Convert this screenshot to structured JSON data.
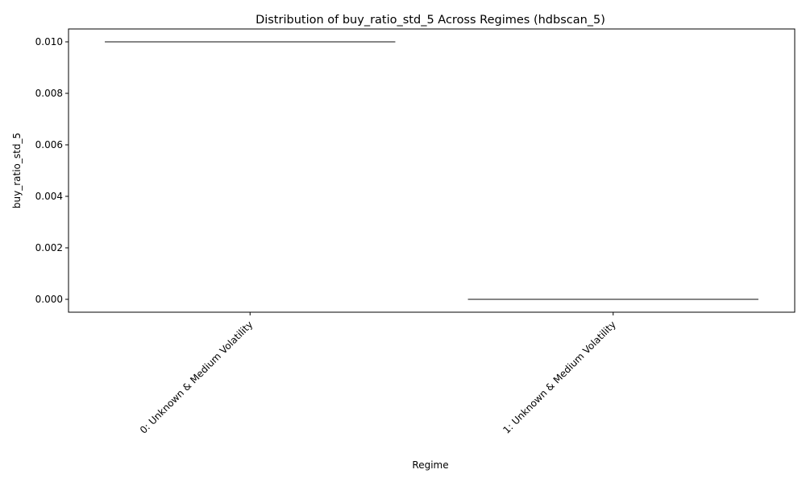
{
  "chart_data": {
    "type": "box",
    "title": "Distribution of buy_ratio_std_5 Across Regimes (hdbscan_5)",
    "xlabel": "Regime",
    "ylabel": "buy_ratio_std_5",
    "categories": [
      "0: Unknown & Medium Volatility",
      "1: Unknown & Medium Volatility"
    ],
    "values": [
      0.01,
      0.0
    ],
    "yticks": [
      "0.000",
      "0.002",
      "0.004",
      "0.006",
      "0.008",
      "0.010"
    ],
    "ytick_values": [
      0,
      0.002,
      0.004,
      0.006,
      0.008,
      0.01
    ],
    "ylim": [
      -0.0005,
      0.0105
    ],
    "grid": false,
    "line_color": "#3f3f3f",
    "axis_color": "#000000"
  }
}
